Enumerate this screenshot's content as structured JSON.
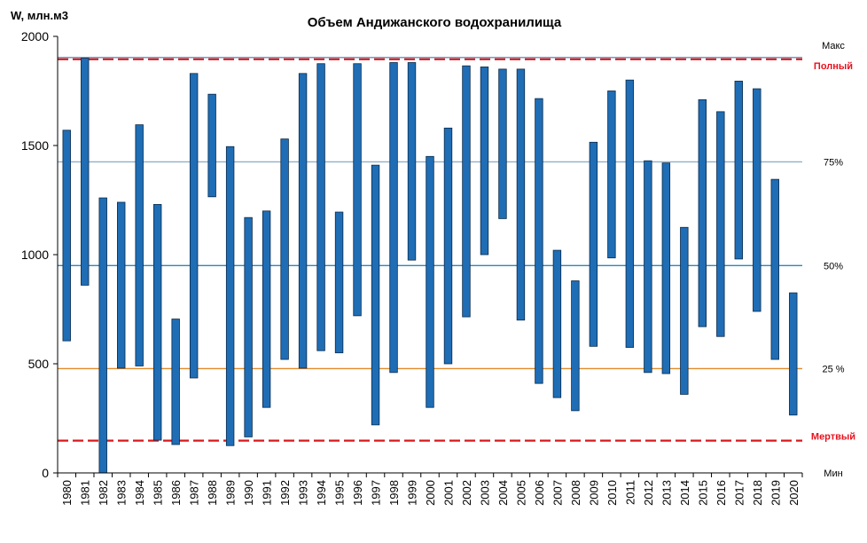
{
  "chart_data": {
    "type": "bar",
    "subtype": "floating-range",
    "title": "Объем Андижанского водохранилища",
    "ylabel": "W, млн.м3",
    "xlabel": "",
    "ylim": [
      0,
      2000
    ],
    "yticks": [
      0,
      500,
      1000,
      1500,
      2000
    ],
    "grid": false,
    "legend": "none",
    "bar_color": "#1f6db5",
    "bar_edge_color": "#0a2a4a",
    "categories": [
      "1980",
      "1981",
      "1982",
      "1983",
      "1984",
      "1985",
      "1986",
      "1987",
      "1988",
      "1989",
      "1990",
      "1991",
      "1992",
      "1993",
      "1994",
      "1995",
      "1996",
      "1997",
      "1998",
      "1999",
      "2000",
      "2001",
      "2002",
      "2003",
      "2004",
      "2005",
      "2006",
      "2007",
      "2008",
      "2009",
      "2010",
      "2011",
      "2012",
      "2013",
      "2014",
      "2015",
      "2016",
      "2017",
      "2018",
      "2019",
      "2020"
    ],
    "series": [
      {
        "low": [
          605,
          860,
          0,
          480,
          490,
          150,
          130,
          435,
          1265,
          125,
          165,
          300,
          520,
          480,
          560,
          550,
          720,
          220,
          460,
          975,
          300,
          500,
          715,
          1000,
          1165,
          700,
          410,
          345,
          285,
          580,
          985,
          575,
          460,
          455,
          360,
          670,
          625,
          980,
          740,
          520,
          265
        ],
        "high": [
          1570,
          1900,
          1260,
          1240,
          1595,
          1230,
          705,
          1830,
          1735,
          1495,
          1170,
          1200,
          1530,
          1830,
          1875,
          1195,
          1875,
          1410,
          1880,
          1880,
          1450,
          1580,
          1865,
          1860,
          1850,
          1850,
          1715,
          1020,
          880,
          1515,
          1750,
          1800,
          1430,
          1420,
          1125,
          1710,
          1655,
          1795,
          1760,
          1345,
          825
        ]
      }
    ],
    "reference_lines": [
      {
        "label": "Макс",
        "value": 1903,
        "color": "#6b8bb5",
        "style": "solid",
        "label_color": "#000000"
      },
      {
        "label": "Полный",
        "value": 1895,
        "color": "#d7191c",
        "style": "dashed",
        "label_color": "#e8131f"
      },
      {
        "label": "75%",
        "value": 1425,
        "color": "#8fb0cc",
        "style": "solid",
        "label_color": "#000000"
      },
      {
        "label": "50%",
        "value": 950,
        "color": "#2e86b8",
        "style": "solid",
        "label_color": "#000000"
      },
      {
        "label": "25 %",
        "value": 478,
        "color": "#e28a2b",
        "style": "solid",
        "label_color": "#000000"
      },
      {
        "label": "Мертвый",
        "value": 148,
        "color": "#d7191c",
        "style": "dashed",
        "label_color": "#e8131f"
      },
      {
        "label": "Мин",
        "value": 0,
        "color": "#ffffff",
        "style": "none",
        "label_color": "#000000"
      }
    ]
  }
}
